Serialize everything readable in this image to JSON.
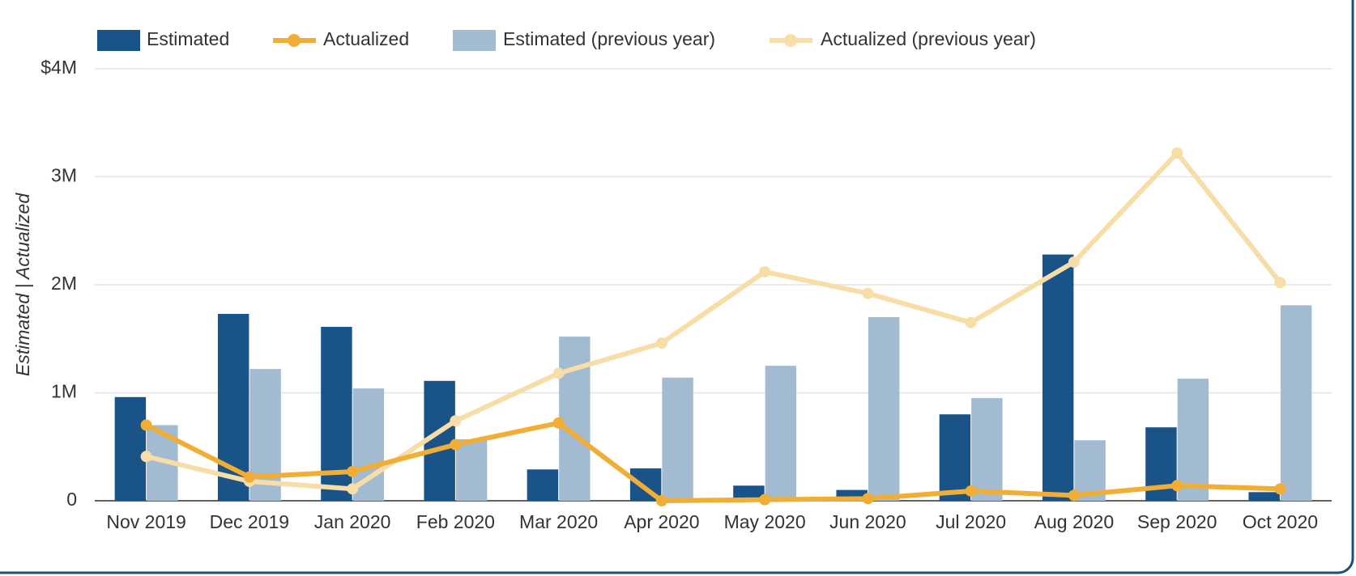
{
  "chart_data": {
    "type": "bar_line",
    "y_axis_label": "Estimated | Actualized",
    "categories": [
      "Nov 2019",
      "Dec 2019",
      "Jan 2020",
      "Feb 2020",
      "Mar 2020",
      "Apr 2020",
      "May 2020",
      "Jun 2020",
      "Jul 2020",
      "Aug 2020",
      "Sep 2020",
      "Oct 2020"
    ],
    "series": [
      {
        "name": "Estimated",
        "kind": "bar",
        "color": "#1a5387",
        "values": [
          960000,
          1730000,
          1610000,
          1110000,
          290000,
          300000,
          140000,
          100000,
          800000,
          2280000,
          680000,
          80000
        ]
      },
      {
        "name": "Actualized",
        "kind": "line",
        "color": "#f0ae36",
        "values": [
          700000,
          220000,
          270000,
          520000,
          720000,
          0,
          10000,
          20000,
          90000,
          50000,
          140000,
          110000
        ]
      },
      {
        "name": "Estimated (previous year)",
        "kind": "bar",
        "color": "#a3bbd0",
        "values": [
          700000,
          1220000,
          1040000,
          570000,
          1520000,
          1140000,
          1250000,
          1700000,
          950000,
          560000,
          1130000,
          1810000
        ]
      },
      {
        "name": "Actualized (previous year)",
        "kind": "line",
        "color": "#f7dea8",
        "values": [
          410000,
          180000,
          110000,
          740000,
          1180000,
          1460000,
          2120000,
          1920000,
          1650000,
          2210000,
          3220000,
          2020000
        ]
      }
    ],
    "ylim": [
      0,
      4000000
    ],
    "yticks": [
      0,
      {
        "value": 1000000,
        "label": "1M"
      },
      {
        "value": 2000000,
        "label": "2M"
      },
      {
        "value": 3000000,
        "label": "3M"
      },
      {
        "value": 4000000,
        "label": "$4M"
      }
    ],
    "grid": true,
    "legend": "top"
  }
}
